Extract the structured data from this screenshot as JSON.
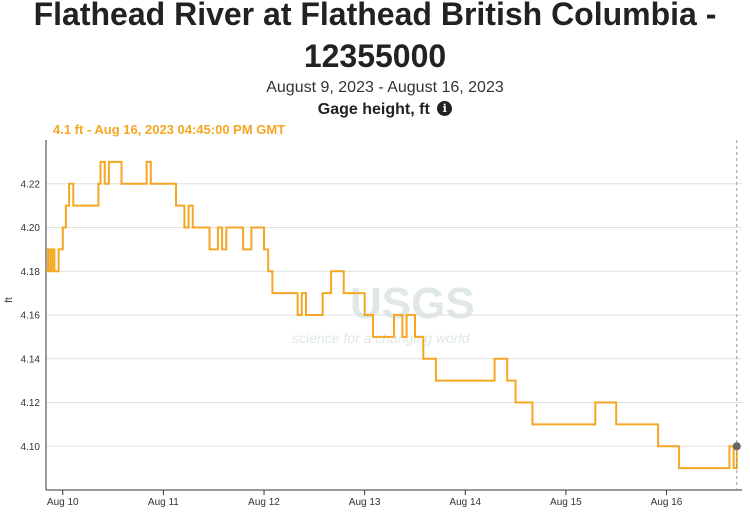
{
  "title_line1": "Flathead River at Flathead British Columbia -",
  "title_line2": "12355000",
  "date_range": "August 9, 2023 - August 16, 2023",
  "parameter": "Gage height, ft",
  "info_icon": "info-icon",
  "tooltip": "4.1 ft - Aug 16, 2023 04:45:00 PM GMT",
  "watermark": {
    "logo": "USGS",
    "tagline": "science for a changing world"
  },
  "colors": {
    "series": "#f5a623",
    "grid": "#e0e0e0",
    "axis": "#333333",
    "point": "#666666"
  },
  "chart_data": {
    "type": "line",
    "ylabel": "ft",
    "xlabel": "",
    "ylim": [
      4.08,
      4.24
    ],
    "y_ticks": [
      4.1,
      4.12,
      4.14,
      4.16,
      4.18,
      4.2,
      4.22
    ],
    "y_tick_labels": [
      "4.10",
      "4.12",
      "4.14",
      "4.16",
      "4.18",
      "4.20",
      "4.22"
    ],
    "x_range": [
      "2023-08-09 20:00",
      "2023-08-16 18:00"
    ],
    "x_ticks": [
      "2023-08-10",
      "2023-08-11",
      "2023-08-12",
      "2023-08-13",
      "2023-08-14",
      "2023-08-15",
      "2023-08-16"
    ],
    "x_tick_labels": [
      "Aug 10",
      "Aug 11",
      "Aug 12",
      "Aug 13",
      "Aug 14",
      "Aug 15",
      "Aug 16"
    ],
    "grid": true,
    "highlight_point": {
      "x": "2023-08-16 16:45",
      "y": 4.1
    },
    "series": [
      {
        "x": [
          "2023-08-09 20:00",
          "2023-08-09 20:30",
          "2023-08-09 21:00",
          "2023-08-09 21:30",
          "2023-08-09 22:00",
          "2023-08-09 23:00",
          "2023-08-10 00:00",
          "2023-08-10 00:45",
          "2023-08-10 01:30",
          "2023-08-10 02:30",
          "2023-08-10 05:00",
          "2023-08-10 07:00",
          "2023-08-10 08:30",
          "2023-08-10 09:00",
          "2023-08-10 10:00",
          "2023-08-10 11:00",
          "2023-08-10 14:00",
          "2023-08-10 19:00",
          "2023-08-10 20:00",
          "2023-08-10 21:00",
          "2023-08-11 01:00",
          "2023-08-11 03:00",
          "2023-08-11 05:00",
          "2023-08-11 06:00",
          "2023-08-11 07:00",
          "2023-08-11 08:00",
          "2023-08-11 09:00",
          "2023-08-11 11:00",
          "2023-08-11 13:00",
          "2023-08-11 14:00",
          "2023-08-11 15:00",
          "2023-08-11 18:00",
          "2023-08-11 19:00",
          "2023-08-11 21:00",
          "2023-08-12 00:00",
          "2023-08-12 01:00",
          "2023-08-12 02:00",
          "2023-08-12 04:00",
          "2023-08-12 07:00",
          "2023-08-12 08:00",
          "2023-08-12 09:00",
          "2023-08-12 10:00",
          "2023-08-12 14:00",
          "2023-08-12 16:00",
          "2023-08-12 19:00",
          "2023-08-12 20:00",
          "2023-08-13 00:00",
          "2023-08-13 02:00",
          "2023-08-13 05:00",
          "2023-08-13 07:00",
          "2023-08-13 09:00",
          "2023-08-13 10:00",
          "2023-08-13 12:00",
          "2023-08-13 14:00",
          "2023-08-13 17:00",
          "2023-08-13 21:00",
          "2023-08-14 00:00",
          "2023-08-14 03:00",
          "2023-08-14 07:00",
          "2023-08-14 09:00",
          "2023-08-14 10:00",
          "2023-08-14 12:00",
          "2023-08-14 16:00",
          "2023-08-14 21:00",
          "2023-08-15 00:00",
          "2023-08-15 03:00",
          "2023-08-15 07:00",
          "2023-08-15 08:00",
          "2023-08-15 12:00",
          "2023-08-15 18:00",
          "2023-08-15 22:00",
          "2023-08-16 03:00",
          "2023-08-16 06:00",
          "2023-08-16 08:00",
          "2023-08-16 10:00",
          "2023-08-16 14:00",
          "2023-08-16 15:00",
          "2023-08-16 16:00",
          "2023-08-16 16:45"
        ],
        "values": [
          4.18,
          4.19,
          4.18,
          4.19,
          4.18,
          4.19,
          4.2,
          4.21,
          4.22,
          4.21,
          4.21,
          4.21,
          4.22,
          4.23,
          4.22,
          4.23,
          4.22,
          4.22,
          4.23,
          4.22,
          4.22,
          4.21,
          4.2,
          4.21,
          4.2,
          4.2,
          4.2,
          4.19,
          4.2,
          4.19,
          4.2,
          4.2,
          4.19,
          4.2,
          4.19,
          4.18,
          4.17,
          4.17,
          4.17,
          4.16,
          4.17,
          4.16,
          4.17,
          4.18,
          4.17,
          4.17,
          4.16,
          4.15,
          4.15,
          4.16,
          4.15,
          4.16,
          4.15,
          4.14,
          4.13,
          4.13,
          4.13,
          4.13,
          4.14,
          4.14,
          4.13,
          4.12,
          4.11,
          4.11,
          4.11,
          4.11,
          4.12,
          4.12,
          4.11,
          4.11,
          4.1,
          4.09,
          4.09,
          4.09,
          4.09,
          4.09,
          4.1,
          4.09,
          4.1
        ]
      }
    ]
  }
}
